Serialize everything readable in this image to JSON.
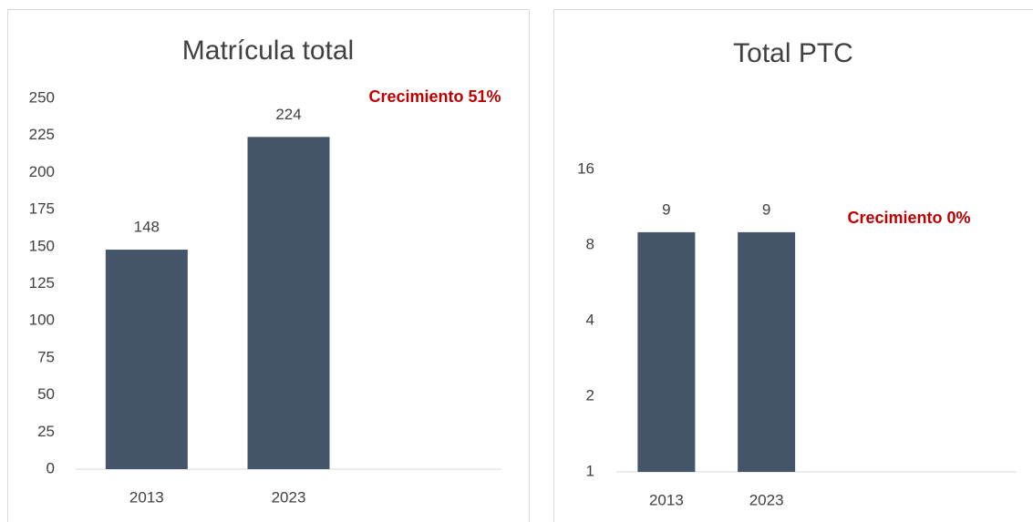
{
  "chart_data": [
    {
      "type": "bar",
      "title": "Matrícula total",
      "categories": [
        "2013",
        "2023"
      ],
      "values": [
        148,
        224
      ],
      "color": "#445469",
      "ylim": [
        0,
        250
      ],
      "yticks": [
        0,
        25,
        50,
        75,
        100,
        125,
        150,
        175,
        200,
        225,
        250
      ],
      "grid": false,
      "annotation": "Crecimiento 51%",
      "annotation_color": "#c00000"
    },
    {
      "type": "bar",
      "title": "Total PTC",
      "categories": [
        "2013",
        "2023"
      ],
      "values": [
        9,
        9
      ],
      "color": "#445469",
      "ylim": [
        1,
        16
      ],
      "yticks": [
        1,
        2,
        4,
        8,
        16
      ],
      "log_scale": true,
      "grid": false,
      "annotation": "Crecimiento 0%",
      "annotation_color": "#c00000"
    }
  ]
}
